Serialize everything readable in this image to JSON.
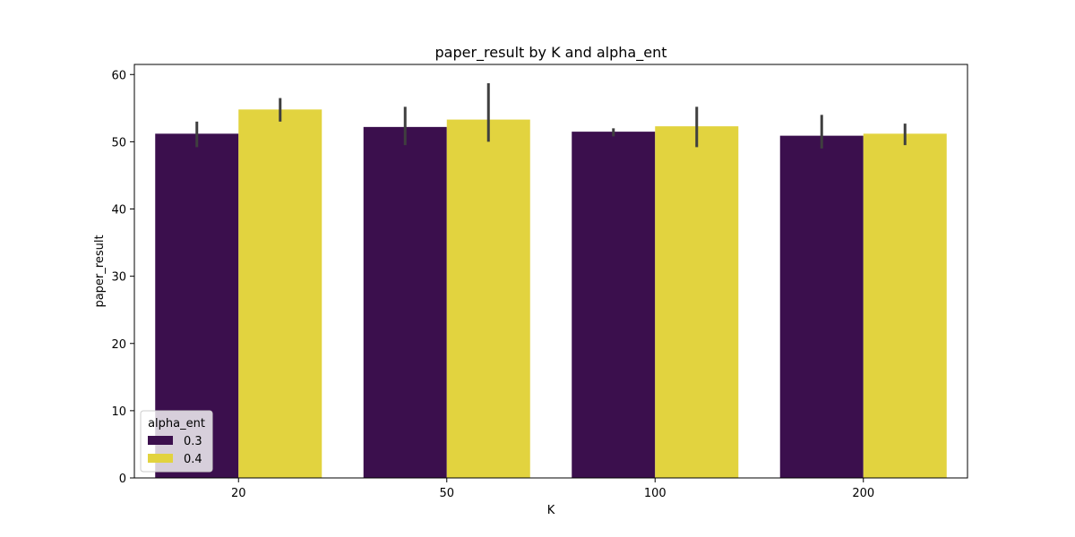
{
  "chart_data": {
    "type": "bar",
    "title": "paper_result by K and alpha_ent",
    "xlabel": "K",
    "ylabel": "paper_result",
    "categories": [
      "20",
      "50",
      "100",
      "200"
    ],
    "ylim": [
      0,
      61.5
    ],
    "yticks": [
      0,
      10,
      20,
      30,
      40,
      50,
      60
    ],
    "grid": false,
    "legend": {
      "title": "alpha_ent",
      "position": "lower-left"
    },
    "series": [
      {
        "name": "0.3",
        "color": "#3b0f4d",
        "values": [
          51.2,
          52.2,
          51.5,
          50.9
        ],
        "ci_low": [
          49.2,
          49.5,
          50.8,
          49.0
        ],
        "ci_high": [
          53.0,
          55.2,
          52.0,
          54.0
        ]
      },
      {
        "name": "0.4",
        "color": "#e2d33f",
        "values": [
          54.8,
          53.3,
          52.3,
          51.2
        ],
        "ci_low": [
          53.0,
          50.0,
          49.2,
          49.5
        ],
        "ci_high": [
          56.5,
          58.7,
          55.2,
          52.7
        ]
      }
    ],
    "errorbar_color": "#3f3f3f"
  }
}
